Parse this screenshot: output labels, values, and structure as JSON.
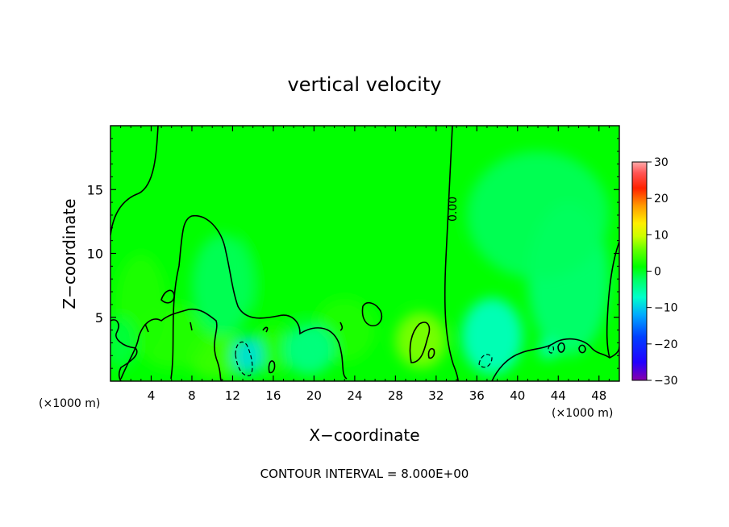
{
  "chart_data": {
    "type": "heatmap",
    "title": "vertical velocity",
    "xlabel": "X−coordinate",
    "ylabel": "Z−coordinate",
    "x_unit_left": "(×1000 m)",
    "x_unit_right": "(×1000 m)",
    "xlim": [
      0,
      50
    ],
    "ylim": [
      0,
      20
    ],
    "x_ticks": [
      4,
      8,
      12,
      16,
      20,
      24,
      28,
      32,
      36,
      40,
      44,
      48
    ],
    "x_tick_labels": [
      "4",
      "8",
      "12",
      "16",
      "20",
      "24",
      "28",
      "32",
      "36",
      "40",
      "44",
      "48"
    ],
    "y_ticks": [
      5,
      10,
      15
    ],
    "y_tick_labels": [
      "5",
      "10",
      "15"
    ],
    "colorbar": {
      "range": [
        -30,
        30
      ],
      "ticks": [
        30,
        20,
        10,
        0,
        -10,
        -20,
        -30
      ],
      "tick_labels": [
        "30",
        "20",
        "10",
        "0",
        "−10",
        "−20",
        "−30"
      ]
    },
    "contour_label": "0.00",
    "footer": "CONTOUR INTERVAL = 8.000E+00",
    "field_background": 0,
    "features": [
      {
        "x": 30.5,
        "z": 3.2,
        "rx": 2.5,
        "rz": 2.2,
        "value": 7
      },
      {
        "x": 10.5,
        "z": 2.0,
        "rx": 3.0,
        "rz": 1.8,
        "value": 4
      },
      {
        "x": 6.0,
        "z": 3.5,
        "rx": 3.5,
        "rz": 2.5,
        "value": 3
      },
      {
        "x": 3.0,
        "z": 6.0,
        "rx": 2.5,
        "rz": 4.0,
        "value": 2.5
      },
      {
        "x": 16.0,
        "z": 2.5,
        "rx": 2.0,
        "rz": 1.8,
        "value": 3
      },
      {
        "x": 27.5,
        "z": 11.0,
        "rx": 6.0,
        "rz": 4.5,
        "value": 1.5
      },
      {
        "x": 17.0,
        "z": 9.0,
        "rx": 5.0,
        "rz": 4.0,
        "value": 1
      },
      {
        "x": 23.0,
        "z": 4.0,
        "rx": 3.0,
        "rz": 2.5,
        "value": 2.5
      },
      {
        "x": 13.5,
        "z": 2.0,
        "rx": 1.5,
        "rz": 1.5,
        "value": -9
      },
      {
        "x": 19.5,
        "z": 2.5,
        "rx": 2.5,
        "rz": 2.0,
        "value": -4
      },
      {
        "x": 37.5,
        "z": 3.5,
        "rx": 3.0,
        "rz": 3.0,
        "value": -7
      },
      {
        "x": 45.0,
        "z": 8.0,
        "rx": 4.0,
        "rz": 6.0,
        "value": -3
      },
      {
        "x": 42.0,
        "z": 13.0,
        "rx": 7.0,
        "rz": 5.0,
        "value": -2
      },
      {
        "x": 11.0,
        "z": 7.5,
        "rx": 3.0,
        "rz": 4.0,
        "value": -2
      },
      {
        "x": 43.0,
        "z": 2.5,
        "rx": 1.0,
        "rz": 0.8,
        "value": -6
      },
      {
        "x": 1.0,
        "z": 3.0,
        "rx": 1.5,
        "rz": 2.0,
        "value": -1
      }
    ]
  }
}
